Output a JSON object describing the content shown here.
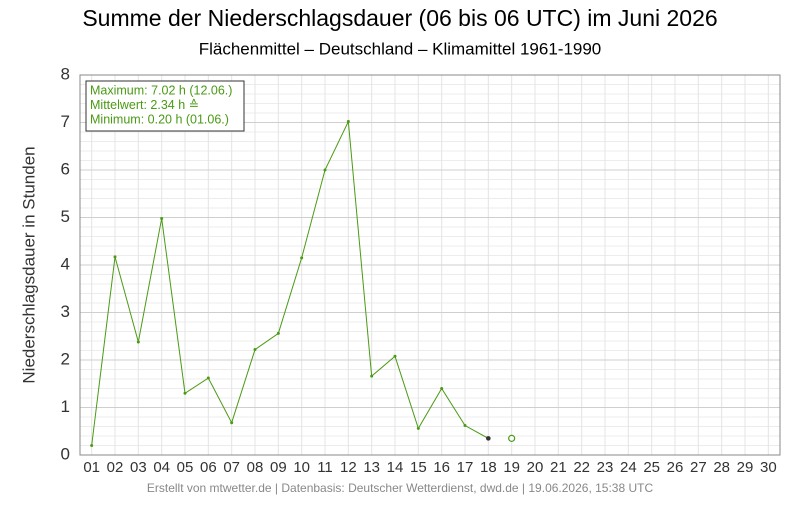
{
  "chart_data": {
    "type": "line",
    "title": "Summe der Niederschlagsdauer (06 bis 06 UTC) im Juni 2026",
    "subtitle": "Flächenmittel – Deutschland – Klimamittel 1961-1990",
    "y_label": "Niederschlagsdauer in Stunden",
    "info_box": [
      "Maximum: 7.02 h  (12.06.)",
      "Mittelwert: 2.34 h  ≙",
      "Minimum:  0.20 h  (01.06.)"
    ],
    "footer": "Erstellt von mtwetter.de | Datenbasis: Deutscher Wetterdienst, dwd.de | 19.06.2026, 15:38 UTC",
    "categories": [
      "01",
      "02",
      "03",
      "04",
      "05",
      "06",
      "07",
      "08",
      "09",
      "10",
      "11",
      "12",
      "13",
      "14",
      "15",
      "16",
      "17",
      "18",
      "19",
      "20",
      "21",
      "22",
      "23",
      "24",
      "25",
      "26",
      "27",
      "28",
      "29",
      "30"
    ],
    "series": [
      {
        "color": "#4a9a14",
        "values": [
          0.2,
          4.17,
          2.38,
          4.98,
          1.3,
          1.62,
          0.68,
          2.22,
          2.56,
          4.15,
          6.0,
          7.02,
          1.66,
          2.08,
          0.56,
          1.4,
          0.62,
          0.35,
          null,
          null,
          null,
          null,
          null,
          null,
          null,
          null,
          null,
          null,
          null,
          null
        ]
      },
      {
        "color": "#4a9a14",
        "marker": "open-circle",
        "values": [
          null,
          null,
          null,
          null,
          null,
          null,
          null,
          null,
          null,
          null,
          null,
          null,
          null,
          null,
          null,
          null,
          null,
          null,
          0.35,
          null,
          null,
          null,
          null,
          null,
          null,
          null,
          null,
          null,
          null,
          null
        ]
      }
    ],
    "ylim": [
      0,
      8
    ],
    "yticks": [
      0,
      1,
      2,
      3,
      4,
      5,
      6,
      7,
      8
    ],
    "grid": true
  }
}
